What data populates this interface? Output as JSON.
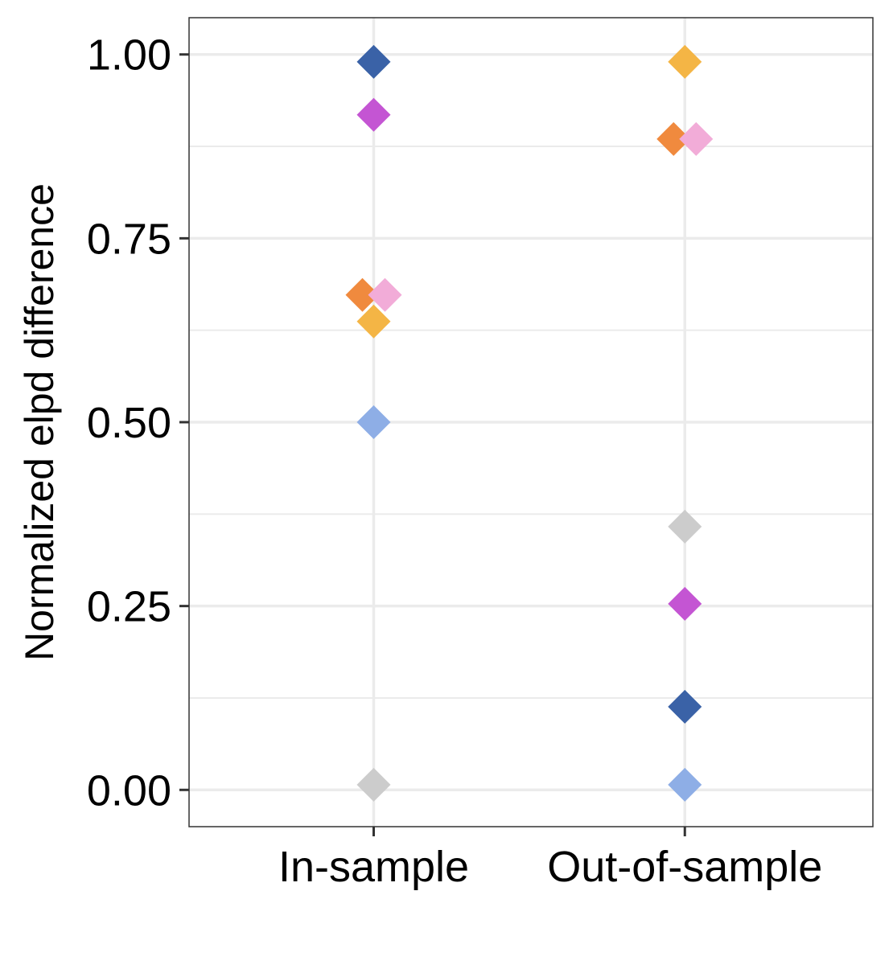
{
  "chart_data": {
    "type": "scatter",
    "title": "",
    "xlabel": "",
    "ylabel": "Normalized elpd difference",
    "categories": [
      "In-sample",
      "Out-of-sample"
    ],
    "ylim": [
      -0.05,
      1.05
    ],
    "yticks": [
      0.0,
      0.25,
      0.5,
      0.75,
      1.0
    ],
    "ytick_labels": [
      "0.00",
      "0.25",
      "0.50",
      "0.75",
      "1.00"
    ],
    "grid": true,
    "legend": "none",
    "marker": "diamond",
    "series": [
      {
        "color": "#3A62A7",
        "values": [
          0.99,
          0.113
        ]
      },
      {
        "color": "#C455D3",
        "values": [
          0.918,
          0.253
        ]
      },
      {
        "color": "#F08A3E",
        "values": [
          0.673,
          0.885
        ]
      },
      {
        "color": "#F2ACD8",
        "values": [
          0.673,
          0.885
        ]
      },
      {
        "color": "#F4B545",
        "values": [
          0.637,
          0.99
        ]
      },
      {
        "color": "#8EAEE6",
        "values": [
          0.5,
          0.007
        ]
      },
      {
        "color": "#CCCCCC",
        "values": [
          0.007,
          0.358
        ]
      }
    ]
  }
}
